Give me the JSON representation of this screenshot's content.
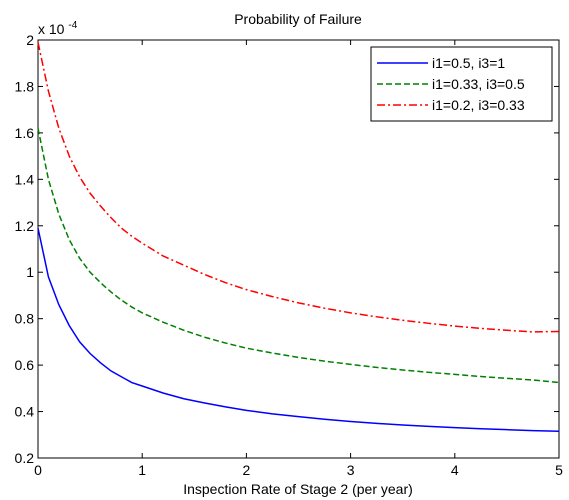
{
  "chart_data": {
    "type": "line",
    "title": "Probability of Failure",
    "xlabel": "Inspection Rate of Stage 2 (per year)",
    "ylabel": "",
    "y_scale_label": "x 10",
    "y_scale_exponent": "-4",
    "xlim": [
      0,
      5
    ],
    "ylim": [
      0.2,
      2
    ],
    "xticks": [
      "0",
      "1",
      "2",
      "3",
      "4",
      "5"
    ],
    "yticks": [
      "0.2",
      "0.4",
      "0.6",
      "0.8",
      "1",
      "1.2",
      "1.4",
      "1.6",
      "1.8",
      "2"
    ],
    "legend_position": "top-right",
    "grid": false,
    "x": [
      0,
      0.1,
      0.2,
      0.3,
      0.4,
      0.5,
      0.6,
      0.7,
      0.8,
      0.9,
      1.0,
      1.2,
      1.4,
      1.6,
      1.8,
      2.0,
      2.25,
      2.5,
      2.75,
      3.0,
      3.25,
      3.5,
      3.75,
      4.0,
      4.25,
      4.5,
      4.75,
      5.0
    ],
    "series": [
      {
        "name": "i1=0.5, i3=1",
        "color": "#0000ff",
        "style": "solid",
        "values": [
          1.19,
          0.98,
          0.86,
          0.77,
          0.7,
          0.65,
          0.61,
          0.575,
          0.55,
          0.525,
          0.51,
          0.48,
          0.455,
          0.437,
          0.42,
          0.405,
          0.39,
          0.378,
          0.367,
          0.357,
          0.349,
          0.342,
          0.336,
          0.331,
          0.326,
          0.322,
          0.318,
          0.315
        ]
      },
      {
        "name": "i1=0.33, i3=0.5",
        "color": "#008000",
        "style": "dashed",
        "values": [
          1.62,
          1.4,
          1.25,
          1.14,
          1.06,
          1.0,
          0.955,
          0.915,
          0.88,
          0.85,
          0.825,
          0.785,
          0.75,
          0.72,
          0.695,
          0.673,
          0.652,
          0.633,
          0.617,
          0.603,
          0.59,
          0.579,
          0.569,
          0.56,
          0.551,
          0.543,
          0.536,
          0.525
        ]
      },
      {
        "name": "i1=0.2, i3=0.33",
        "color": "#ff0000",
        "style": "dashdot",
        "values": [
          1.99,
          1.78,
          1.62,
          1.5,
          1.41,
          1.34,
          1.285,
          1.235,
          1.19,
          1.155,
          1.125,
          1.07,
          1.03,
          0.99,
          0.955,
          0.925,
          0.895,
          0.868,
          0.845,
          0.825,
          0.808,
          0.793,
          0.78,
          0.768,
          0.758,
          0.75,
          0.743,
          0.745
        ]
      }
    ]
  }
}
